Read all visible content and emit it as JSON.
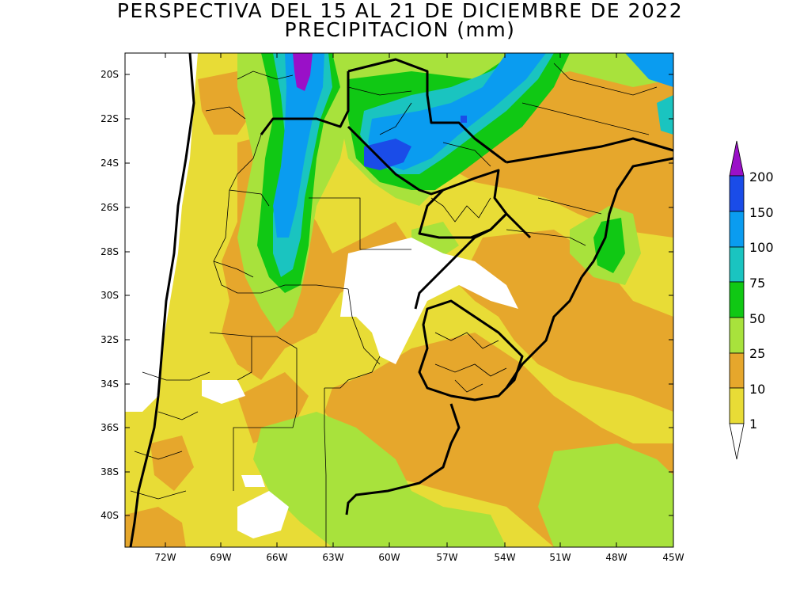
{
  "title": {
    "line1": "PERSPECTIVA DEL 15 AL 21 DE DICIEMBRE DE 2022",
    "line2": "PRECIPITACION (mm)"
  },
  "y_ticks": [
    "20S",
    "22S",
    "24S",
    "26S",
    "28S",
    "30S",
    "32S",
    "34S",
    "36S",
    "38S",
    "40S"
  ],
  "x_ticks": [
    "72W",
    "69W",
    "66W",
    "63W",
    "60W",
    "57W",
    "54W",
    "51W",
    "48W",
    "45W"
  ],
  "legend": {
    "levels": [
      "1",
      "10",
      "25",
      "50",
      "75",
      "100",
      "150",
      "200"
    ],
    "colors": {
      "lt1": "#ffffff",
      "c1_10": "#e8dc36",
      "c10_25": "#e6a72c",
      "c25_50": "#a8e23c",
      "c50_75": "#10c814",
      "c75_100": "#1ac4c0",
      "c100_150": "#0a9cf0",
      "c150_200": "#1a4ce8",
      "gt200": "#9a10c8"
    }
  }
}
